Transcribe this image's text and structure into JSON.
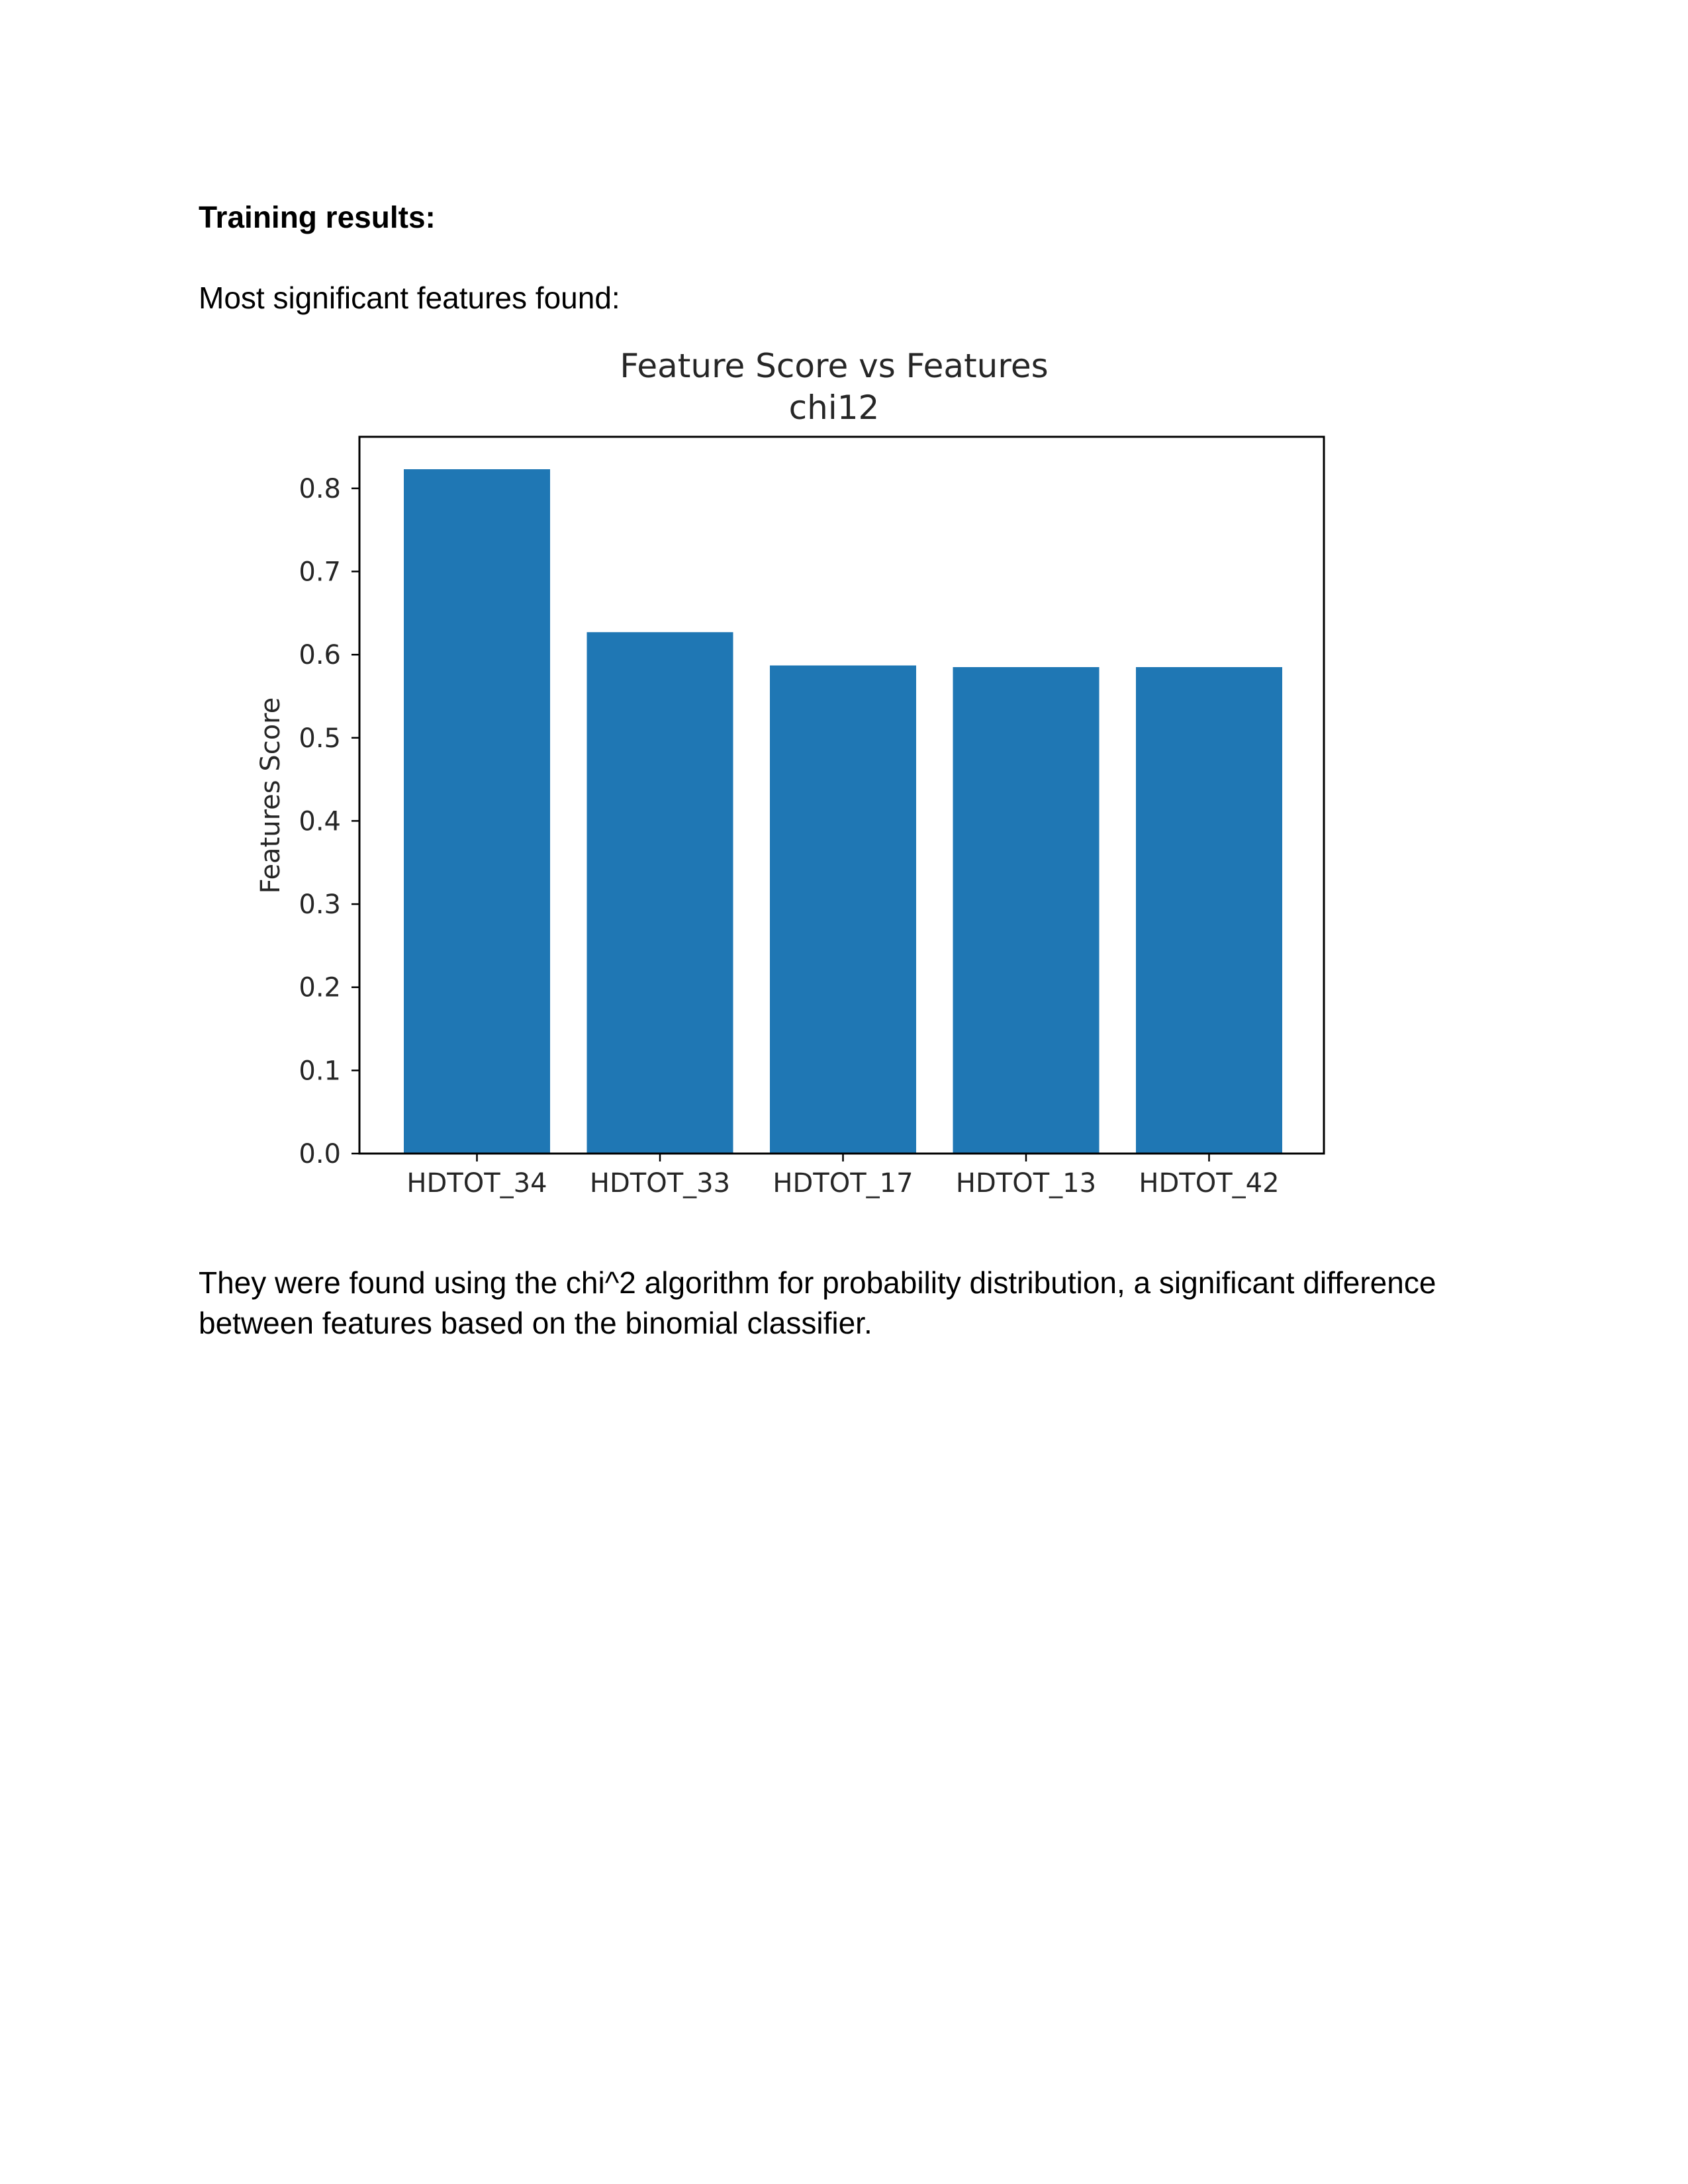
{
  "document": {
    "heading": "Training results:",
    "intro": "Most significant features found:",
    "description_line1": "They were found using the chi^2 algorithm for probability distribution, a significant difference",
    "description_line2": "between features based on the binomial classifier."
  },
  "chart_data": {
    "type": "bar",
    "title": "Feature Score vs Features",
    "subtitle": "chi12",
    "xlabel": "",
    "ylabel": "Features Score",
    "categories": [
      "HDTOT_34",
      "HDTOT_33",
      "HDTOT_17",
      "HDTOT_13",
      "HDTOT_42"
    ],
    "values": [
      0.823,
      0.627,
      0.587,
      0.585,
      0.585
    ],
    "ylim": [
      0,
      0.862
    ],
    "yticks": [
      "0.0",
      "0.1",
      "0.2",
      "0.3",
      "0.4",
      "0.5",
      "0.6",
      "0.7",
      "0.8"
    ],
    "bar_color": "#1f77b4",
    "grid": false,
    "legend": "none"
  }
}
